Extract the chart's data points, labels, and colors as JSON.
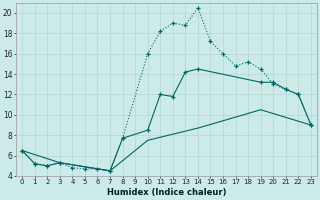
{
  "xlabel": "Humidex (Indice chaleur)",
  "bg_color": "#cceae8",
  "grid_color": "#b8d8d6",
  "line_color": "#006666",
  "xlim_min": -0.5,
  "xlim_max": 23.5,
  "ylim_min": 4,
  "ylim_max": 21,
  "yticks": [
    4,
    6,
    8,
    10,
    12,
    14,
    16,
    18,
    20
  ],
  "xticks": [
    0,
    1,
    2,
    3,
    4,
    5,
    6,
    7,
    8,
    9,
    10,
    11,
    12,
    13,
    14,
    15,
    16,
    17,
    18,
    19,
    20,
    21,
    22,
    23
  ],
  "line1_x": [
    0,
    1,
    2,
    3,
    4,
    5,
    6,
    7,
    8,
    10,
    11,
    12,
    13,
    14,
    15,
    16,
    17,
    18,
    19,
    20,
    21,
    22,
    23
  ],
  "line1_y": [
    6.5,
    5.2,
    5.0,
    5.3,
    4.8,
    4.7,
    4.7,
    4.5,
    7.7,
    16.0,
    18.2,
    19.0,
    18.8,
    20.5,
    17.2,
    16.0,
    14.8,
    15.2,
    14.5,
    13.0,
    12.5,
    12.0,
    9.0
  ],
  "line2_x": [
    0,
    1,
    2,
    3,
    7,
    8,
    10,
    11,
    12,
    13,
    14,
    19,
    20,
    21,
    22,
    23
  ],
  "line2_y": [
    6.5,
    5.2,
    5.0,
    5.3,
    4.5,
    7.7,
    8.5,
    12.0,
    11.8,
    14.2,
    14.5,
    13.2,
    13.2,
    12.5,
    12.0,
    9.0
  ],
  "line3_x": [
    0,
    3,
    7,
    10,
    14,
    19,
    23
  ],
  "line3_y": [
    6.5,
    5.3,
    4.5,
    7.5,
    8.7,
    10.5,
    9.0
  ]
}
